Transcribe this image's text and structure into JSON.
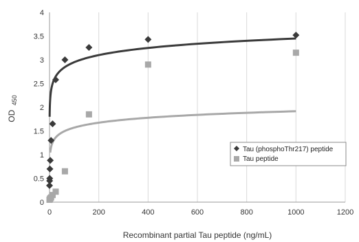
{
  "chart_data": {
    "type": "scatter",
    "xlabel": "Recombinant partial Tau peptide (ng/mL)",
    "ylabel_main": "OD",
    "ylabel_sub": "450",
    "xlim": [
      0,
      1200
    ],
    "ylim": [
      0,
      4
    ],
    "x_ticks": [
      0,
      200,
      400,
      600,
      800,
      1000,
      1200
    ],
    "y_ticks": [
      "0",
      "0.5",
      "1",
      "1.5",
      "2",
      "2.5",
      "3",
      "3.5",
      "4"
    ],
    "grid": "vertical",
    "legend_position": "right",
    "series": [
      {
        "name": "Tau (phosphoThr217) peptide",
        "marker": "diamond",
        "color": "#3a3a3a",
        "x": [
          0,
          0.4,
          0.8,
          1.6,
          3.1,
          6.3,
          12.5,
          25,
          62.5,
          160,
          400,
          1000
        ],
        "y": [
          0.35,
          0.45,
          0.5,
          0.7,
          0.88,
          1.3,
          1.65,
          2.58,
          3.0,
          3.26,
          3.43,
          3.52
        ],
        "fit": {
          "kind": "log",
          "a": 1.95,
          "b": 0.217,
          "x_from": 0.5,
          "x_to": 1000,
          "color": "#3a3a3a"
        }
      },
      {
        "name": "Tau peptide",
        "marker": "square",
        "color": "#a8a8a8",
        "x": [
          0,
          1.6,
          3.1,
          6.3,
          12.5,
          25,
          62.5,
          160,
          400,
          1000
        ],
        "y": [
          0.05,
          0.06,
          0.08,
          0.1,
          0.15,
          0.22,
          0.65,
          1.85,
          2.9,
          3.15
        ],
        "fit": {
          "kind": "log",
          "a": 0.88,
          "b": 0.15,
          "x_from": 3,
          "x_to": 1000,
          "color": "#a8a8a8"
        }
      }
    ]
  }
}
